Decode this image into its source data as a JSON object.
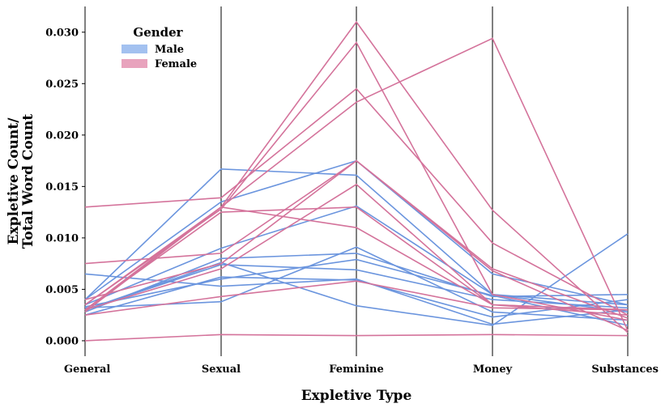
{
  "chart_data": {
    "type": "parallel_coordinates",
    "title": "",
    "xlabel": "Expletive Type",
    "ylabel_line1": "Expletive Count/",
    "ylabel_line2": "Total Word Count",
    "categories": [
      "General",
      "Sexual",
      "Feminine",
      "Money",
      "Substances"
    ],
    "ylim": [
      -0.0015,
      0.0325
    ],
    "yticks": [
      0.0,
      0.005,
      0.01,
      0.015,
      0.02,
      0.025,
      0.03
    ],
    "ytick_labels": [
      "0.000",
      "0.005",
      "0.010",
      "0.015",
      "0.020",
      "0.025",
      "0.030"
    ],
    "legend": {
      "title": "Gender",
      "position": "top-left",
      "entries": [
        {
          "label": "Male",
          "color": "#a3c1f0"
        },
        {
          "label": "Female",
          "color": "#e8a3bd"
        }
      ]
    },
    "colors": {
      "Male": "#6b95de",
      "Female": "#d4739b"
    },
    "series": [
      {
        "group": "Male",
        "values": [
          0.0065,
          0.0053,
          0.006,
          0.0016,
          0.003
        ]
      },
      {
        "group": "Male",
        "values": [
          0.004,
          0.0167,
          0.0161,
          0.0045,
          0.0035
        ]
      },
      {
        "group": "Male",
        "values": [
          0.004,
          0.0135,
          0.0175,
          0.0065,
          0.0035
        ]
      },
      {
        "group": "Male",
        "values": [
          0.0028,
          0.008,
          0.0085,
          0.0043,
          0.0045
        ]
      },
      {
        "group": "Male",
        "values": [
          0.003,
          0.0076,
          0.0034,
          0.0015,
          0.0104
        ]
      },
      {
        "group": "Male",
        "values": [
          0.0035,
          0.009,
          0.0131,
          0.0045,
          0.0028
        ]
      },
      {
        "group": "Male",
        "values": [
          0.003,
          0.0074,
          0.0069,
          0.004,
          0.0032
        ]
      },
      {
        "group": "Male",
        "values": [
          0.0025,
          0.0062,
          0.0059,
          0.0023,
          0.004
        ]
      },
      {
        "group": "Male",
        "values": [
          0.0032,
          0.0038,
          0.0091,
          0.0028,
          0.002
        ]
      },
      {
        "group": "Male",
        "values": [
          0.0033,
          0.006,
          0.0079,
          0.0044,
          0.0015
        ]
      },
      {
        "group": "Female",
        "values": [
          0.013,
          0.0139,
          0.0245,
          0.0095,
          0.0025
        ]
      },
      {
        "group": "Female",
        "values": [
          0.0075,
          0.0085,
          0.0175,
          0.0068,
          0.001
        ]
      },
      {
        "group": "Female",
        "values": [
          0.0,
          0.0006,
          0.0005,
          0.0006,
          0.0005
        ]
      },
      {
        "group": "Female",
        "values": [
          0.003,
          0.0125,
          0.013,
          0.0035,
          0.003
        ]
      },
      {
        "group": "Female",
        "values": [
          0.0035,
          0.0128,
          0.029,
          0.0045,
          0.002
        ]
      },
      {
        "group": "Female",
        "values": [
          0.0028,
          0.013,
          0.031,
          0.0127,
          0.0008
        ]
      },
      {
        "group": "Female",
        "values": [
          0.0035,
          0.013,
          0.0232,
          0.0294,
          0.001
        ]
      },
      {
        "group": "Female",
        "values": [
          0.003,
          0.007,
          0.0152,
          0.0035,
          0.003
        ]
      },
      {
        "group": "Female",
        "values": [
          0.003,
          0.013,
          0.011,
          0.0035,
          0.0025
        ]
      },
      {
        "group": "Female",
        "values": [
          0.0025,
          0.0043,
          0.0058,
          0.0032,
          0.003
        ]
      },
      {
        "group": "Female",
        "values": [
          0.004,
          0.0075,
          0.0175,
          0.007,
          0.0022
        ]
      }
    ]
  }
}
